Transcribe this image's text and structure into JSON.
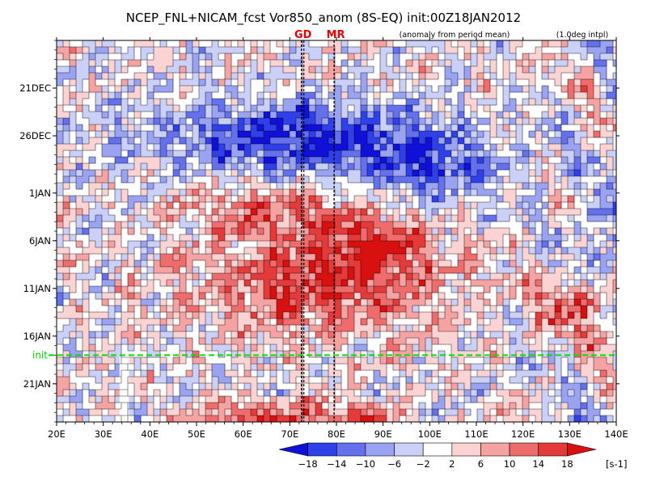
{
  "chart_data": {
    "type": "heatmap",
    "title": "NCEP_FNL+NICAM_fcst Vor850_anom (8S-EQ) init:00Z18JAN2012",
    "subtitle_left": "(anomaly from period mean)",
    "subtitle_right": "(1.0deg intpl)",
    "xlabel": "",
    "ylabel": "",
    "x_ticks": [
      "20E",
      "30E",
      "40E",
      "50E",
      "60E",
      "70E",
      "80E",
      "90E",
      "100E",
      "110E",
      "120E",
      "130E",
      "140E"
    ],
    "x_tick_values": [
      20,
      30,
      40,
      50,
      60,
      70,
      80,
      90,
      100,
      110,
      120,
      130,
      140
    ],
    "xlim": [
      20,
      140
    ],
    "y_ticks": [
      "21DEC",
      "26DEC",
      "1JAN",
      "6JAN",
      "11JAN",
      "16JAN",
      "21JAN"
    ],
    "y_tick_values": [
      "2011-12-21",
      "2011-12-26",
      "2012-01-01",
      "2012-01-06",
      "2012-01-11",
      "2012-01-16",
      "2012-01-21"
    ],
    "ylim": [
      "2011-12-16",
      "2012-01-25"
    ],
    "y_reversed": true,
    "init_label": "init",
    "init_date": "2012-01-18",
    "reference_lines": [
      {
        "label": "GD",
        "lon": 72.5
      },
      {
        "label": "MR",
        "lon": 79.5
      }
    ],
    "missing_band_lon": [
      33.5,
      35.5
    ],
    "colorbar": {
      "levels": [
        -18,
        -14,
        -10,
        -6,
        -2,
        2,
        6,
        10,
        14,
        18
      ],
      "tick_labels": [
        "−18",
        "−14",
        "−10",
        "−6",
        "−2",
        "2",
        "6",
        "10",
        "14",
        "18"
      ],
      "unit": "[s-1]",
      "colors": [
        "#1010d8",
        "#2f40e8",
        "#6470ec",
        "#9aa2f2",
        "#cbd0f8",
        "#ffffff",
        "#fbd3d3",
        "#f5a2a2",
        "#ee6c6c",
        "#e43a3a",
        "#d81010"
      ]
    },
    "colors": {
      "init_line": "#00dd00",
      "marker_text": "#e00000"
    }
  }
}
